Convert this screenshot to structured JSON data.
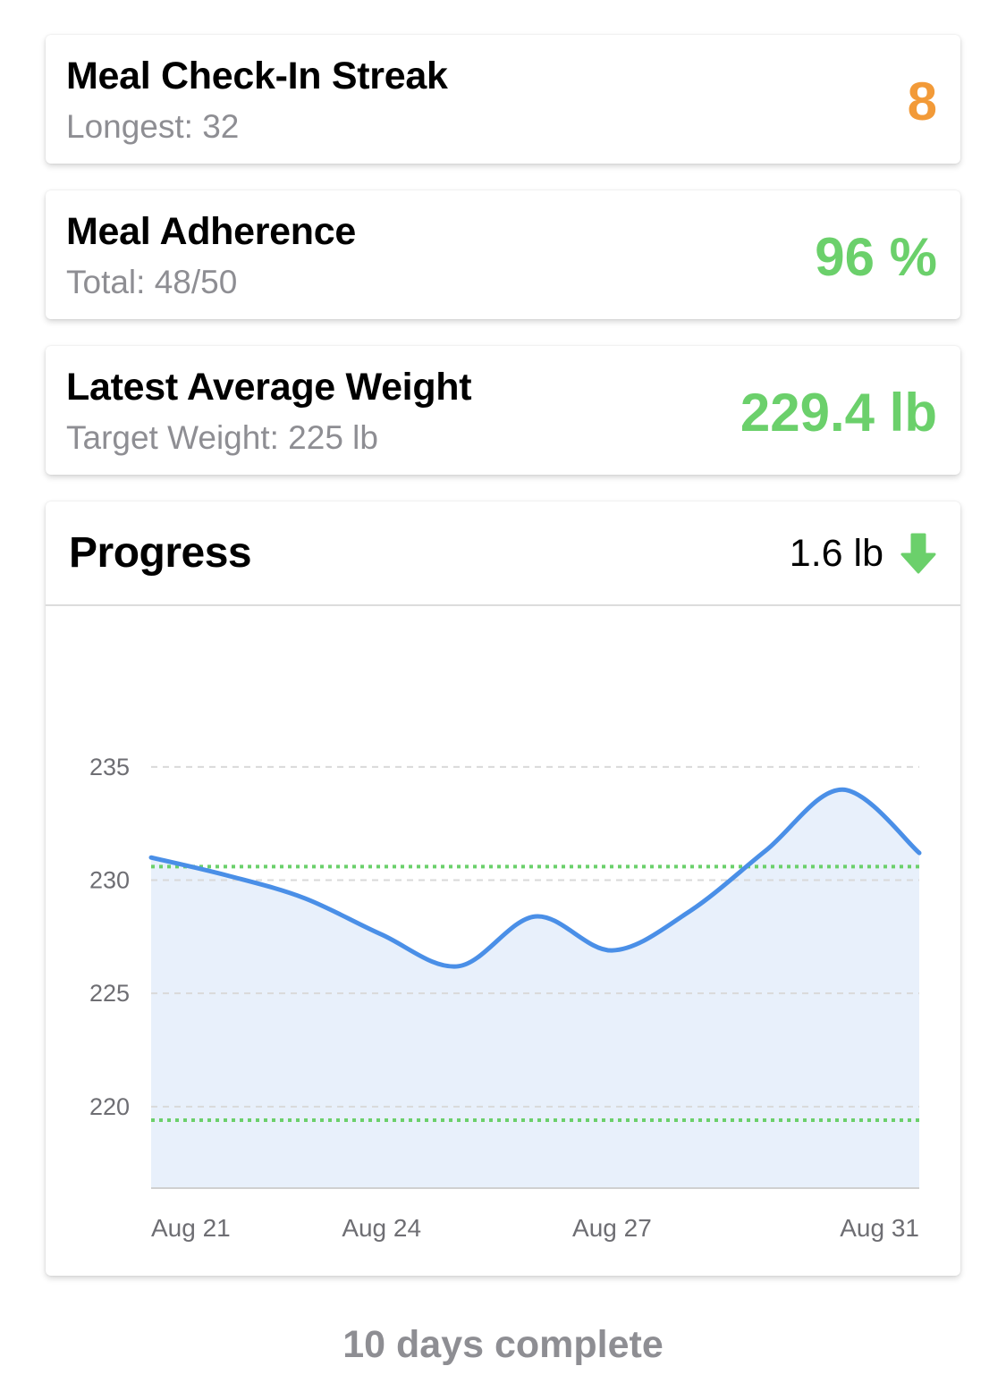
{
  "cards": {
    "streak": {
      "title": "Meal Check-In Streak",
      "subtitle": "Longest: 32",
      "value": "8",
      "value_color": "#f29a38"
    },
    "adherence": {
      "title": "Meal Adherence",
      "subtitle": "Total: 48/50",
      "value": "96 %",
      "value_color": "#6bd06b"
    },
    "weight": {
      "title": "Latest Average Weight",
      "subtitle": "Target Weight: 225 lb",
      "value": "229.4 lb",
      "value_color": "#6bd06b"
    }
  },
  "progress": {
    "title": "Progress",
    "change_text": "1.6 lb",
    "change_icon": "arrow-down-icon",
    "change_color": "#6bd06b"
  },
  "chart_data": {
    "type": "area",
    "title": "",
    "xlabel": "",
    "ylabel": "",
    "ylim": [
      216.4,
      240.8
    ],
    "yticks": [
      235,
      230,
      225,
      220
    ],
    "xticks": [
      {
        "label": "Aug 21",
        "x": 0
      },
      {
        "label": "Aug 24",
        "x": 3
      },
      {
        "label": "Aug 27",
        "x": 6
      },
      {
        "label": "Aug 31",
        "x": 10
      }
    ],
    "grid": true,
    "series": [
      {
        "x": [
          0,
          1,
          2,
          3,
          4,
          5,
          6,
          7,
          8,
          9,
          10
        ],
        "y": [
          231.0,
          230.2,
          229.2,
          227.6,
          226.2,
          228.4,
          226.9,
          228.6,
          231.3,
          234.0,
          231.2
        ],
        "color": "#4a8fe7",
        "fill": "#e8f0fb"
      }
    ],
    "reference_lines": [
      {
        "y": 230.6,
        "color": "#6bd06b"
      },
      {
        "y": 219.4,
        "color": "#6bd06b"
      }
    ]
  },
  "footer": {
    "text": "10 days complete"
  }
}
